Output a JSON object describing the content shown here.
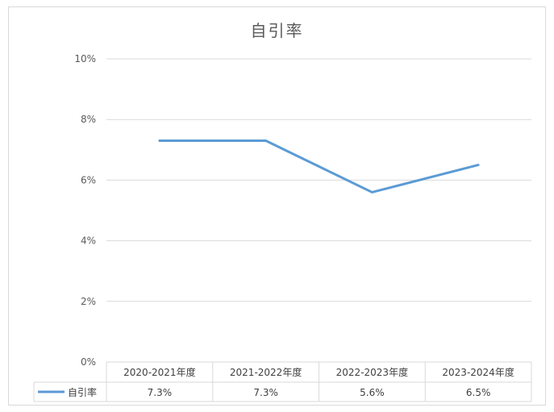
{
  "chart_data": {
    "type": "line",
    "title": "自引率",
    "categories": [
      "2020-2021年度",
      "2021-2022年度",
      "2022-2023年度",
      "2023-2024年度"
    ],
    "series": [
      {
        "name": "自引率",
        "values": [
          7.3,
          7.3,
          5.6,
          6.5
        ],
        "labels": [
          "7.3%",
          "7.3%",
          "5.6%",
          "6.5%"
        ],
        "color": "#5b9bd5"
      }
    ],
    "ylim": [
      0,
      10
    ],
    "yticks": [
      "0%",
      "2%",
      "4%",
      "6%",
      "8%",
      "10%"
    ],
    "grid": true,
    "data_table": true
  }
}
